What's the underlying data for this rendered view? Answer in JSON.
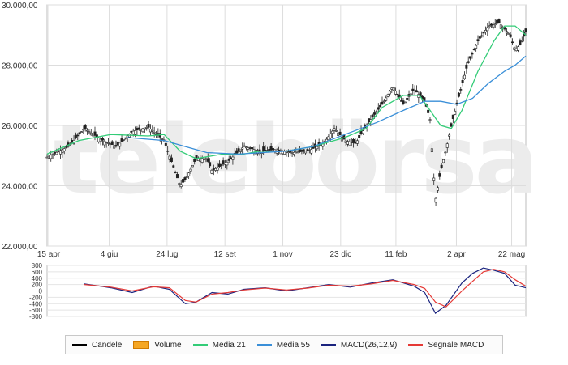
{
  "chart_data": [
    {
      "type": "candlestick",
      "panel": "price",
      "watermark": "telebörsa",
      "x_ticks": [
        "15 apr",
        "4 giu",
        "24 lug",
        "12 set",
        "1 nov",
        "23 dic",
        "11 feb",
        "2 apr",
        "22 mag"
      ],
      "y_ticks": [
        "22.000,00",
        "24.000,00",
        "26.000,00",
        "28.000,00",
        "30.000,00"
      ],
      "ylim": [
        22000,
        30000
      ],
      "grid": true,
      "close_points": [
        {
          "x": 0,
          "y": 24950
        },
        {
          "x": 4,
          "y": 25300
        },
        {
          "x": 7,
          "y": 25900
        },
        {
          "x": 10,
          "y": 25550
        },
        {
          "x": 13,
          "y": 25300
        },
        {
          "x": 16,
          "y": 25800
        },
        {
          "x": 19,
          "y": 25950
        },
        {
          "x": 22,
          "y": 25500
        },
        {
          "x": 25,
          "y": 24000
        },
        {
          "x": 26,
          "y": 24200
        },
        {
          "x": 28,
          "y": 24900
        },
        {
          "x": 30,
          "y": 24900
        },
        {
          "x": 31,
          "y": 24500
        },
        {
          "x": 34,
          "y": 24800
        },
        {
          "x": 37,
          "y": 25300
        },
        {
          "x": 40,
          "y": 25150
        },
        {
          "x": 43,
          "y": 25200
        },
        {
          "x": 46,
          "y": 25100
        },
        {
          "x": 49,
          "y": 25150
        },
        {
          "x": 52,
          "y": 25400
        },
        {
          "x": 54,
          "y": 25900
        },
        {
          "x": 56,
          "y": 25500
        },
        {
          "x": 58,
          "y": 25400
        },
        {
          "x": 60,
          "y": 26000
        },
        {
          "x": 63,
          "y": 26700
        },
        {
          "x": 65,
          "y": 27300
        },
        {
          "x": 67,
          "y": 26700
        },
        {
          "x": 69,
          "y": 27200
        },
        {
          "x": 71,
          "y": 26800
        },
        {
          "x": 72,
          "y": 26200
        },
        {
          "x": 73,
          "y": 23500
        },
        {
          "x": 74,
          "y": 24500
        },
        {
          "x": 75,
          "y": 25200
        },
        {
          "x": 76,
          "y": 26000
        },
        {
          "x": 77,
          "y": 26700
        },
        {
          "x": 79,
          "y": 28000
        },
        {
          "x": 81,
          "y": 28800
        },
        {
          "x": 83,
          "y": 29300
        },
        {
          "x": 85,
          "y": 29400
        },
        {
          "x": 87,
          "y": 29000
        },
        {
          "x": 88,
          "y": 28500
        },
        {
          "x": 89,
          "y": 28700
        },
        {
          "x": 90,
          "y": 29100
        }
      ],
      "series": [
        {
          "name": "Media 21",
          "color": "#33cc77",
          "points": [
            {
              "x": 0,
              "y": 25050
            },
            {
              "x": 6,
              "y": 25500
            },
            {
              "x": 12,
              "y": 25700
            },
            {
              "x": 19,
              "y": 25650
            },
            {
              "x": 22,
              "y": 25700
            },
            {
              "x": 25,
              "y": 25150
            },
            {
              "x": 28,
              "y": 24900
            },
            {
              "x": 33,
              "y": 25050
            },
            {
              "x": 37,
              "y": 25050
            },
            {
              "x": 40,
              "y": 25150
            },
            {
              "x": 45,
              "y": 25150
            },
            {
              "x": 50,
              "y": 25300
            },
            {
              "x": 56,
              "y": 25600
            },
            {
              "x": 60,
              "y": 25900
            },
            {
              "x": 63,
              "y": 26600
            },
            {
              "x": 67,
              "y": 27000
            },
            {
              "x": 70,
              "y": 27000
            },
            {
              "x": 72,
              "y": 26500
            },
            {
              "x": 74,
              "y": 26000
            },
            {
              "x": 76,
              "y": 25900
            },
            {
              "x": 78,
              "y": 26500
            },
            {
              "x": 81,
              "y": 27800
            },
            {
              "x": 84,
              "y": 28800
            },
            {
              "x": 86,
              "y": 29300
            },
            {
              "x": 88,
              "y": 29300
            },
            {
              "x": 90,
              "y": 29000
            }
          ]
        },
        {
          "name": "Media 55",
          "color": "#3a8fd8",
          "points": [
            {
              "x": 15,
              "y": 25600
            },
            {
              "x": 22,
              "y": 25500
            },
            {
              "x": 26,
              "y": 25300
            },
            {
              "x": 30,
              "y": 25100
            },
            {
              "x": 36,
              "y": 25050
            },
            {
              "x": 45,
              "y": 25150
            },
            {
              "x": 50,
              "y": 25300
            },
            {
              "x": 56,
              "y": 25700
            },
            {
              "x": 62,
              "y": 26100
            },
            {
              "x": 67,
              "y": 26500
            },
            {
              "x": 71,
              "y": 26800
            },
            {
              "x": 74,
              "y": 26800
            },
            {
              "x": 77,
              "y": 26700
            },
            {
              "x": 80,
              "y": 26900
            },
            {
              "x": 83,
              "y": 27400
            },
            {
              "x": 86,
              "y": 27800
            },
            {
              "x": 88,
              "y": 28000
            },
            {
              "x": 90,
              "y": 28300
            }
          ]
        }
      ]
    },
    {
      "type": "line",
      "panel": "macd",
      "y_ticks": [
        "800",
        "600",
        "400",
        "200",
        "0",
        "-200",
        "-400",
        "-600",
        "-800"
      ],
      "ylim": [
        -800,
        800
      ],
      "grid": true,
      "series": [
        {
          "name": "MACD(26,12,9)",
          "color": "#1a237e",
          "points": [
            {
              "x": 7,
              "y": 220
            },
            {
              "x": 12,
              "y": 100
            },
            {
              "x": 16,
              "y": -50
            },
            {
              "x": 20,
              "y": 150
            },
            {
              "x": 23,
              "y": 50
            },
            {
              "x": 26,
              "y": -400
            },
            {
              "x": 28,
              "y": -350
            },
            {
              "x": 31,
              "y": -50
            },
            {
              "x": 34,
              "y": -100
            },
            {
              "x": 37,
              "y": 50
            },
            {
              "x": 41,
              "y": 100
            },
            {
              "x": 45,
              "y": 0
            },
            {
              "x": 49,
              "y": 100
            },
            {
              "x": 53,
              "y": 200
            },
            {
              "x": 57,
              "y": 120
            },
            {
              "x": 61,
              "y": 250
            },
            {
              "x": 65,
              "y": 350
            },
            {
              "x": 69,
              "y": 150
            },
            {
              "x": 71,
              "y": -50
            },
            {
              "x": 73,
              "y": -700
            },
            {
              "x": 75,
              "y": -450
            },
            {
              "x": 78,
              "y": 250
            },
            {
              "x": 80,
              "y": 550
            },
            {
              "x": 82,
              "y": 720
            },
            {
              "x": 84,
              "y": 650
            },
            {
              "x": 86,
              "y": 550
            },
            {
              "x": 88,
              "y": 180
            },
            {
              "x": 90,
              "y": 100
            }
          ]
        },
        {
          "name": "Segnale MACD",
          "color": "#e53935",
          "points": [
            {
              "x": 7,
              "y": 200
            },
            {
              "x": 12,
              "y": 120
            },
            {
              "x": 16,
              "y": 0
            },
            {
              "x": 20,
              "y": 130
            },
            {
              "x": 23,
              "y": 100
            },
            {
              "x": 26,
              "y": -300
            },
            {
              "x": 28,
              "y": -350
            },
            {
              "x": 31,
              "y": -100
            },
            {
              "x": 34,
              "y": -50
            },
            {
              "x": 37,
              "y": 30
            },
            {
              "x": 41,
              "y": 90
            },
            {
              "x": 45,
              "y": 30
            },
            {
              "x": 49,
              "y": 90
            },
            {
              "x": 53,
              "y": 180
            },
            {
              "x": 57,
              "y": 150
            },
            {
              "x": 61,
              "y": 220
            },
            {
              "x": 65,
              "y": 330
            },
            {
              "x": 69,
              "y": 200
            },
            {
              "x": 71,
              "y": 80
            },
            {
              "x": 73,
              "y": -350
            },
            {
              "x": 75,
              "y": -500
            },
            {
              "x": 78,
              "y": 0
            },
            {
              "x": 80,
              "y": 300
            },
            {
              "x": 82,
              "y": 600
            },
            {
              "x": 84,
              "y": 680
            },
            {
              "x": 86,
              "y": 600
            },
            {
              "x": 88,
              "y": 350
            },
            {
              "x": 90,
              "y": 150
            }
          ]
        }
      ]
    }
  ],
  "legend": [
    {
      "label": "Candele",
      "color": "#000000",
      "kind": "line"
    },
    {
      "label": "Volume",
      "color": "#f5a623",
      "kind": "box"
    },
    {
      "label": "Media 21",
      "color": "#33cc77",
      "kind": "line"
    },
    {
      "label": "Media 55",
      "color": "#3a8fd8",
      "kind": "line"
    },
    {
      "label": "MACD(26,12,9)",
      "color": "#1a237e",
      "kind": "line"
    },
    {
      "label": "Segnale MACD",
      "color": "#e53935",
      "kind": "line"
    }
  ]
}
